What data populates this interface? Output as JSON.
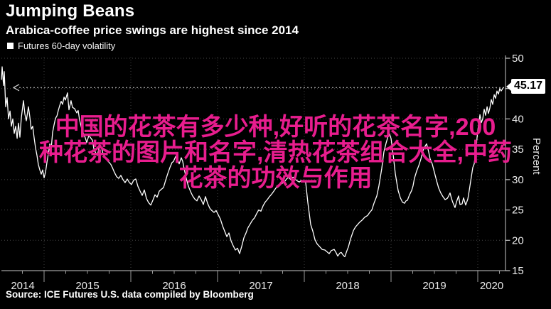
{
  "header": {
    "title": "Jumping Beans",
    "subtitle": "Arabica-coffee price swings are highest since 2014"
  },
  "legend": {
    "label": "Futures 60-day volatility",
    "swatch_color": "#ffffff"
  },
  "watermark": {
    "color": "#e81d8e",
    "lines": [
      "中国的花茶有多少种,好听的花茶名字,200",
      "种花茶的图片和名字,清热花茶组合大全,中药",
      "花茶的功效与作用"
    ]
  },
  "callout": {
    "value": "45.17"
  },
  "source": "Source: ICE Futures U.S. data compiled by Bloomberg",
  "chart_data": {
    "type": "line",
    "title": "Jumping Beans",
    "subtitle": "Arabica-coffee price swings are highest since 2014",
    "xlabel": "",
    "ylabel": "Percent",
    "ylim": [
      15,
      50
    ],
    "xlim": [
      2014.51,
      2020.32
    ],
    "y_ticks": [
      15,
      20,
      25,
      30,
      35,
      40,
      45,
      50
    ],
    "x_ticks": [
      2014,
      2015,
      2016,
      2017,
      2018,
      2019,
      2020
    ],
    "x_gridlines": [
      2015,
      2016,
      2017,
      2018,
      2019,
      2020
    ],
    "grid": "dotted",
    "legend_position": "top-left",
    "last_value": 45.17,
    "line_color": "#ffffff",
    "series": [
      {
        "name": "Futures 60-day volatility",
        "color": "#ffffff",
        "points": [
          [
            2014.508,
            46.5
          ],
          [
            2014.516,
            48.6
          ],
          [
            2014.533,
            45.5
          ],
          [
            2014.541,
            47.8
          ],
          [
            2014.557,
            42.0
          ],
          [
            2014.574,
            43.5
          ],
          [
            2014.59,
            40.0
          ],
          [
            2014.607,
            41.3
          ],
          [
            2014.623,
            38.8
          ],
          [
            2014.639,
            40.0
          ],
          [
            2014.656,
            37.6
          ],
          [
            2014.672,
            38.8
          ],
          [
            2014.689,
            36.8
          ],
          [
            2014.705,
            39.3
          ],
          [
            2014.721,
            37.0
          ],
          [
            2014.738,
            40.2
          ],
          [
            2014.762,
            43.0
          ],
          [
            2014.779,
            40.8
          ],
          [
            2014.795,
            39.7
          ],
          [
            2014.82,
            42.0
          ],
          [
            2014.836,
            40.3
          ],
          [
            2014.852,
            38.3
          ],
          [
            2014.869,
            38.8
          ],
          [
            2014.885,
            36.9
          ],
          [
            2014.902,
            35.2
          ],
          [
            2014.918,
            34.0
          ],
          [
            2014.934,
            32.5
          ],
          [
            2014.951,
            31.6
          ],
          [
            2014.967,
            30.9
          ],
          [
            2014.984,
            31.6
          ],
          [
            2015.0,
            30.3
          ],
          [
            2015.016,
            31.2
          ],
          [
            2015.033,
            32.8
          ],
          [
            2015.049,
            34.3
          ],
          [
            2015.066,
            35.9
          ],
          [
            2015.082,
            35.1
          ],
          [
            2015.098,
            37.8
          ],
          [
            2015.115,
            39.0
          ],
          [
            2015.131,
            40.1
          ],
          [
            2015.148,
            40.5
          ],
          [
            2015.164,
            41.4
          ],
          [
            2015.18,
            42.2
          ],
          [
            2015.197,
            42.9
          ],
          [
            2015.213,
            42.4
          ],
          [
            2015.23,
            43.6
          ],
          [
            2015.246,
            43.1
          ],
          [
            2015.27,
            44.3
          ],
          [
            2015.287,
            41.5
          ],
          [
            2015.311,
            43.0
          ],
          [
            2015.328,
            41.9
          ],
          [
            2015.352,
            41.7
          ],
          [
            2015.377,
            41.0
          ],
          [
            2015.393,
            41.4
          ],
          [
            2015.41,
            39.8
          ],
          [
            2015.434,
            38.4
          ],
          [
            2015.451,
            37.7
          ],
          [
            2015.475,
            36.9
          ],
          [
            2015.492,
            36.1
          ],
          [
            2015.516,
            37.3
          ],
          [
            2015.541,
            36.8
          ],
          [
            2015.557,
            36.5
          ],
          [
            2015.574,
            35.1
          ],
          [
            2015.598,
            34.3
          ],
          [
            2015.615,
            34.0
          ],
          [
            2015.639,
            35.6
          ],
          [
            2015.664,
            35.2
          ],
          [
            2015.68,
            34.2
          ],
          [
            2015.705,
            33.7
          ],
          [
            2015.721,
            33.3
          ],
          [
            2015.746,
            32.9
          ],
          [
            2015.77,
            32.5
          ],
          [
            2015.787,
            32.0
          ],
          [
            2015.811,
            31.2
          ],
          [
            2015.836,
            30.5
          ],
          [
            2015.861,
            30.2
          ],
          [
            2015.885,
            30.7
          ],
          [
            2015.91,
            30.0
          ],
          [
            2015.934,
            29.5
          ],
          [
            2015.959,
            30.1
          ],
          [
            2015.984,
            29.5
          ],
          [
            2016.008,
            29.2
          ],
          [
            2016.033,
            29.9
          ],
          [
            2016.057,
            30.1
          ],
          [
            2016.082,
            28.9
          ],
          [
            2016.107,
            28.1
          ],
          [
            2016.131,
            27.4
          ],
          [
            2016.156,
            28.3
          ],
          [
            2016.18,
            26.9
          ],
          [
            2016.205,
            26.2
          ],
          [
            2016.23,
            25.8
          ],
          [
            2016.254,
            26.6
          ],
          [
            2016.279,
            27.5
          ],
          [
            2016.303,
            27.1
          ],
          [
            2016.328,
            28.1
          ],
          [
            2016.352,
            28.4
          ],
          [
            2016.377,
            28.7
          ],
          [
            2016.402,
            29.9
          ],
          [
            2016.426,
            31.0
          ],
          [
            2016.451,
            32.0
          ],
          [
            2016.475,
            32.8
          ],
          [
            2016.492,
            33.0
          ],
          [
            2016.516,
            33.8
          ],
          [
            2016.541,
            33.2
          ],
          [
            2016.557,
            32.6
          ],
          [
            2016.582,
            33.6
          ],
          [
            2016.598,
            33.0
          ],
          [
            2016.615,
            31.8
          ],
          [
            2016.639,
            30.2
          ],
          [
            2016.664,
            28.9
          ],
          [
            2016.689,
            28.0
          ],
          [
            2016.713,
            27.3
          ],
          [
            2016.738,
            26.8
          ],
          [
            2016.762,
            26.5
          ],
          [
            2016.787,
            27.3
          ],
          [
            2016.811,
            26.7
          ],
          [
            2016.836,
            25.9
          ],
          [
            2016.861,
            27.2
          ],
          [
            2016.885,
            26.1
          ],
          [
            2016.91,
            25.3
          ],
          [
            2016.934,
            24.9
          ],
          [
            2016.959,
            24.6
          ],
          [
            2016.984,
            24.9
          ],
          [
            2017.008,
            24.2
          ],
          [
            2017.033,
            23.5
          ],
          [
            2017.057,
            22.4
          ],
          [
            2017.082,
            21.5
          ],
          [
            2017.107,
            20.6
          ],
          [
            2017.131,
            21.2
          ],
          [
            2017.156,
            19.9
          ],
          [
            2017.18,
            19.1
          ],
          [
            2017.205,
            18.4
          ],
          [
            2017.23,
            18.7
          ],
          [
            2017.254,
            17.8
          ],
          [
            2017.279,
            19.0
          ],
          [
            2017.303,
            20.4
          ],
          [
            2017.328,
            21.2
          ],
          [
            2017.352,
            22.1
          ],
          [
            2017.377,
            22.7
          ],
          [
            2017.402,
            23.3
          ],
          [
            2017.426,
            23.7
          ],
          [
            2017.451,
            24.4
          ],
          [
            2017.475,
            25.0
          ],
          [
            2017.5,
            24.8
          ],
          [
            2017.525,
            25.7
          ],
          [
            2017.549,
            26.3
          ],
          [
            2017.574,
            26.7
          ],
          [
            2017.598,
            27.2
          ],
          [
            2017.623,
            27.6
          ],
          [
            2017.648,
            28.1
          ],
          [
            2017.672,
            28.6
          ],
          [
            2017.697,
            28.9
          ],
          [
            2017.721,
            29.2
          ],
          [
            2017.746,
            29.4
          ],
          [
            2017.77,
            29.6
          ],
          [
            2017.795,
            30.1
          ],
          [
            2017.82,
            30.4
          ],
          [
            2017.844,
            30.0
          ],
          [
            2017.869,
            30.4
          ],
          [
            2017.893,
            30.1
          ],
          [
            2017.918,
            29.8
          ],
          [
            2017.943,
            29.6
          ],
          [
            2017.967,
            29.9
          ],
          [
            2017.992,
            29.7
          ],
          [
            2018.016,
            29.5
          ],
          [
            2018.041,
            26.2
          ],
          [
            2018.074,
            22.6
          ],
          [
            2018.098,
            21.5
          ],
          [
            2018.123,
            20.1
          ],
          [
            2018.148,
            19.4
          ],
          [
            2018.18,
            18.9
          ],
          [
            2018.205,
            18.5
          ],
          [
            2018.238,
            18.4
          ],
          [
            2018.262,
            18.1
          ],
          [
            2018.287,
            17.8
          ],
          [
            2018.311,
            18.3
          ],
          [
            2018.344,
            18.5
          ],
          [
            2018.369,
            17.9
          ],
          [
            2018.385,
            17.4
          ],
          [
            2018.41,
            17.9
          ],
          [
            2018.426,
            18.0
          ],
          [
            2018.451,
            17.5
          ],
          [
            2018.467,
            17.3
          ],
          [
            2018.492,
            18.3
          ],
          [
            2018.508,
            18.9
          ],
          [
            2018.533,
            20.2
          ],
          [
            2018.566,
            21.6
          ],
          [
            2018.59,
            22.2
          ],
          [
            2018.615,
            22.6
          ],
          [
            2018.639,
            23.0
          ],
          [
            2018.672,
            23.4
          ],
          [
            2018.697,
            23.8
          ],
          [
            2018.73,
            24.1
          ],
          [
            2018.754,
            24.6
          ],
          [
            2018.779,
            25.0
          ],
          [
            2018.803,
            26.1
          ],
          [
            2018.836,
            27.3
          ],
          [
            2018.861,
            29.0
          ],
          [
            2018.893,
            31.8
          ],
          [
            2018.918,
            34.6
          ],
          [
            2018.943,
            36.0
          ],
          [
            2018.967,
            37.2
          ],
          [
            2018.984,
            37.5
          ],
          [
            2019.0,
            36.8
          ],
          [
            2019.025,
            34.0
          ],
          [
            2019.049,
            31.0
          ],
          [
            2019.066,
            29.5
          ],
          [
            2019.082,
            28.2
          ],
          [
            2019.107,
            27.0
          ],
          [
            2019.131,
            26.3
          ],
          [
            2019.156,
            26.1
          ],
          [
            2019.172,
            26.5
          ],
          [
            2019.189,
            26.6
          ],
          [
            2019.213,
            27.5
          ],
          [
            2019.238,
            28.2
          ],
          [
            2019.254,
            29.0
          ],
          [
            2019.27,
            30.2
          ],
          [
            2019.295,
            31.4
          ],
          [
            2019.32,
            32.3
          ],
          [
            2019.344,
            33.4
          ],
          [
            2019.369,
            34.8
          ],
          [
            2019.393,
            35.5
          ],
          [
            2019.41,
            35.9
          ],
          [
            2019.434,
            34.6
          ],
          [
            2019.451,
            33.4
          ],
          [
            2019.475,
            32.6
          ],
          [
            2019.5,
            31.2
          ],
          [
            2019.525,
            29.8
          ],
          [
            2019.549,
            28.6
          ],
          [
            2019.574,
            27.8
          ],
          [
            2019.598,
            27.2
          ],
          [
            2019.623,
            26.7
          ],
          [
            2019.648,
            26.9
          ],
          [
            2019.664,
            27.3
          ],
          [
            2019.68,
            27.8
          ],
          [
            2019.697,
            26.9
          ],
          [
            2019.713,
            26.2
          ],
          [
            2019.738,
            25.4
          ],
          [
            2019.754,
            26.3
          ],
          [
            2019.779,
            27.3
          ],
          [
            2019.795,
            25.9
          ],
          [
            2019.82,
            26.0
          ],
          [
            2019.836,
            27.0
          ],
          [
            2019.861,
            25.8
          ],
          [
            2019.885,
            26.8
          ],
          [
            2019.902,
            28.2
          ],
          [
            2019.926,
            30.5
          ],
          [
            2019.943,
            32.0
          ],
          [
            2019.959,
            32.6
          ],
          [
            2019.975,
            34.5
          ],
          [
            2019.992,
            36.9
          ],
          [
            2020.008,
            39.0
          ],
          [
            2020.025,
            40.7
          ],
          [
            2020.041,
            39.4
          ],
          [
            2020.057,
            40.0
          ],
          [
            2020.074,
            41.6
          ],
          [
            2020.09,
            40.6
          ],
          [
            2020.107,
            42.0
          ],
          [
            2020.123,
            40.9
          ],
          [
            2020.139,
            41.8
          ],
          [
            2020.156,
            43.2
          ],
          [
            2020.172,
            42.4
          ],
          [
            2020.189,
            44.0
          ],
          [
            2020.205,
            43.4
          ],
          [
            2020.221,
            44.6
          ],
          [
            2020.238,
            44.1
          ],
          [
            2020.254,
            45.0
          ],
          [
            2020.27,
            44.6
          ],
          [
            2020.295,
            45.17
          ]
        ]
      }
    ]
  }
}
